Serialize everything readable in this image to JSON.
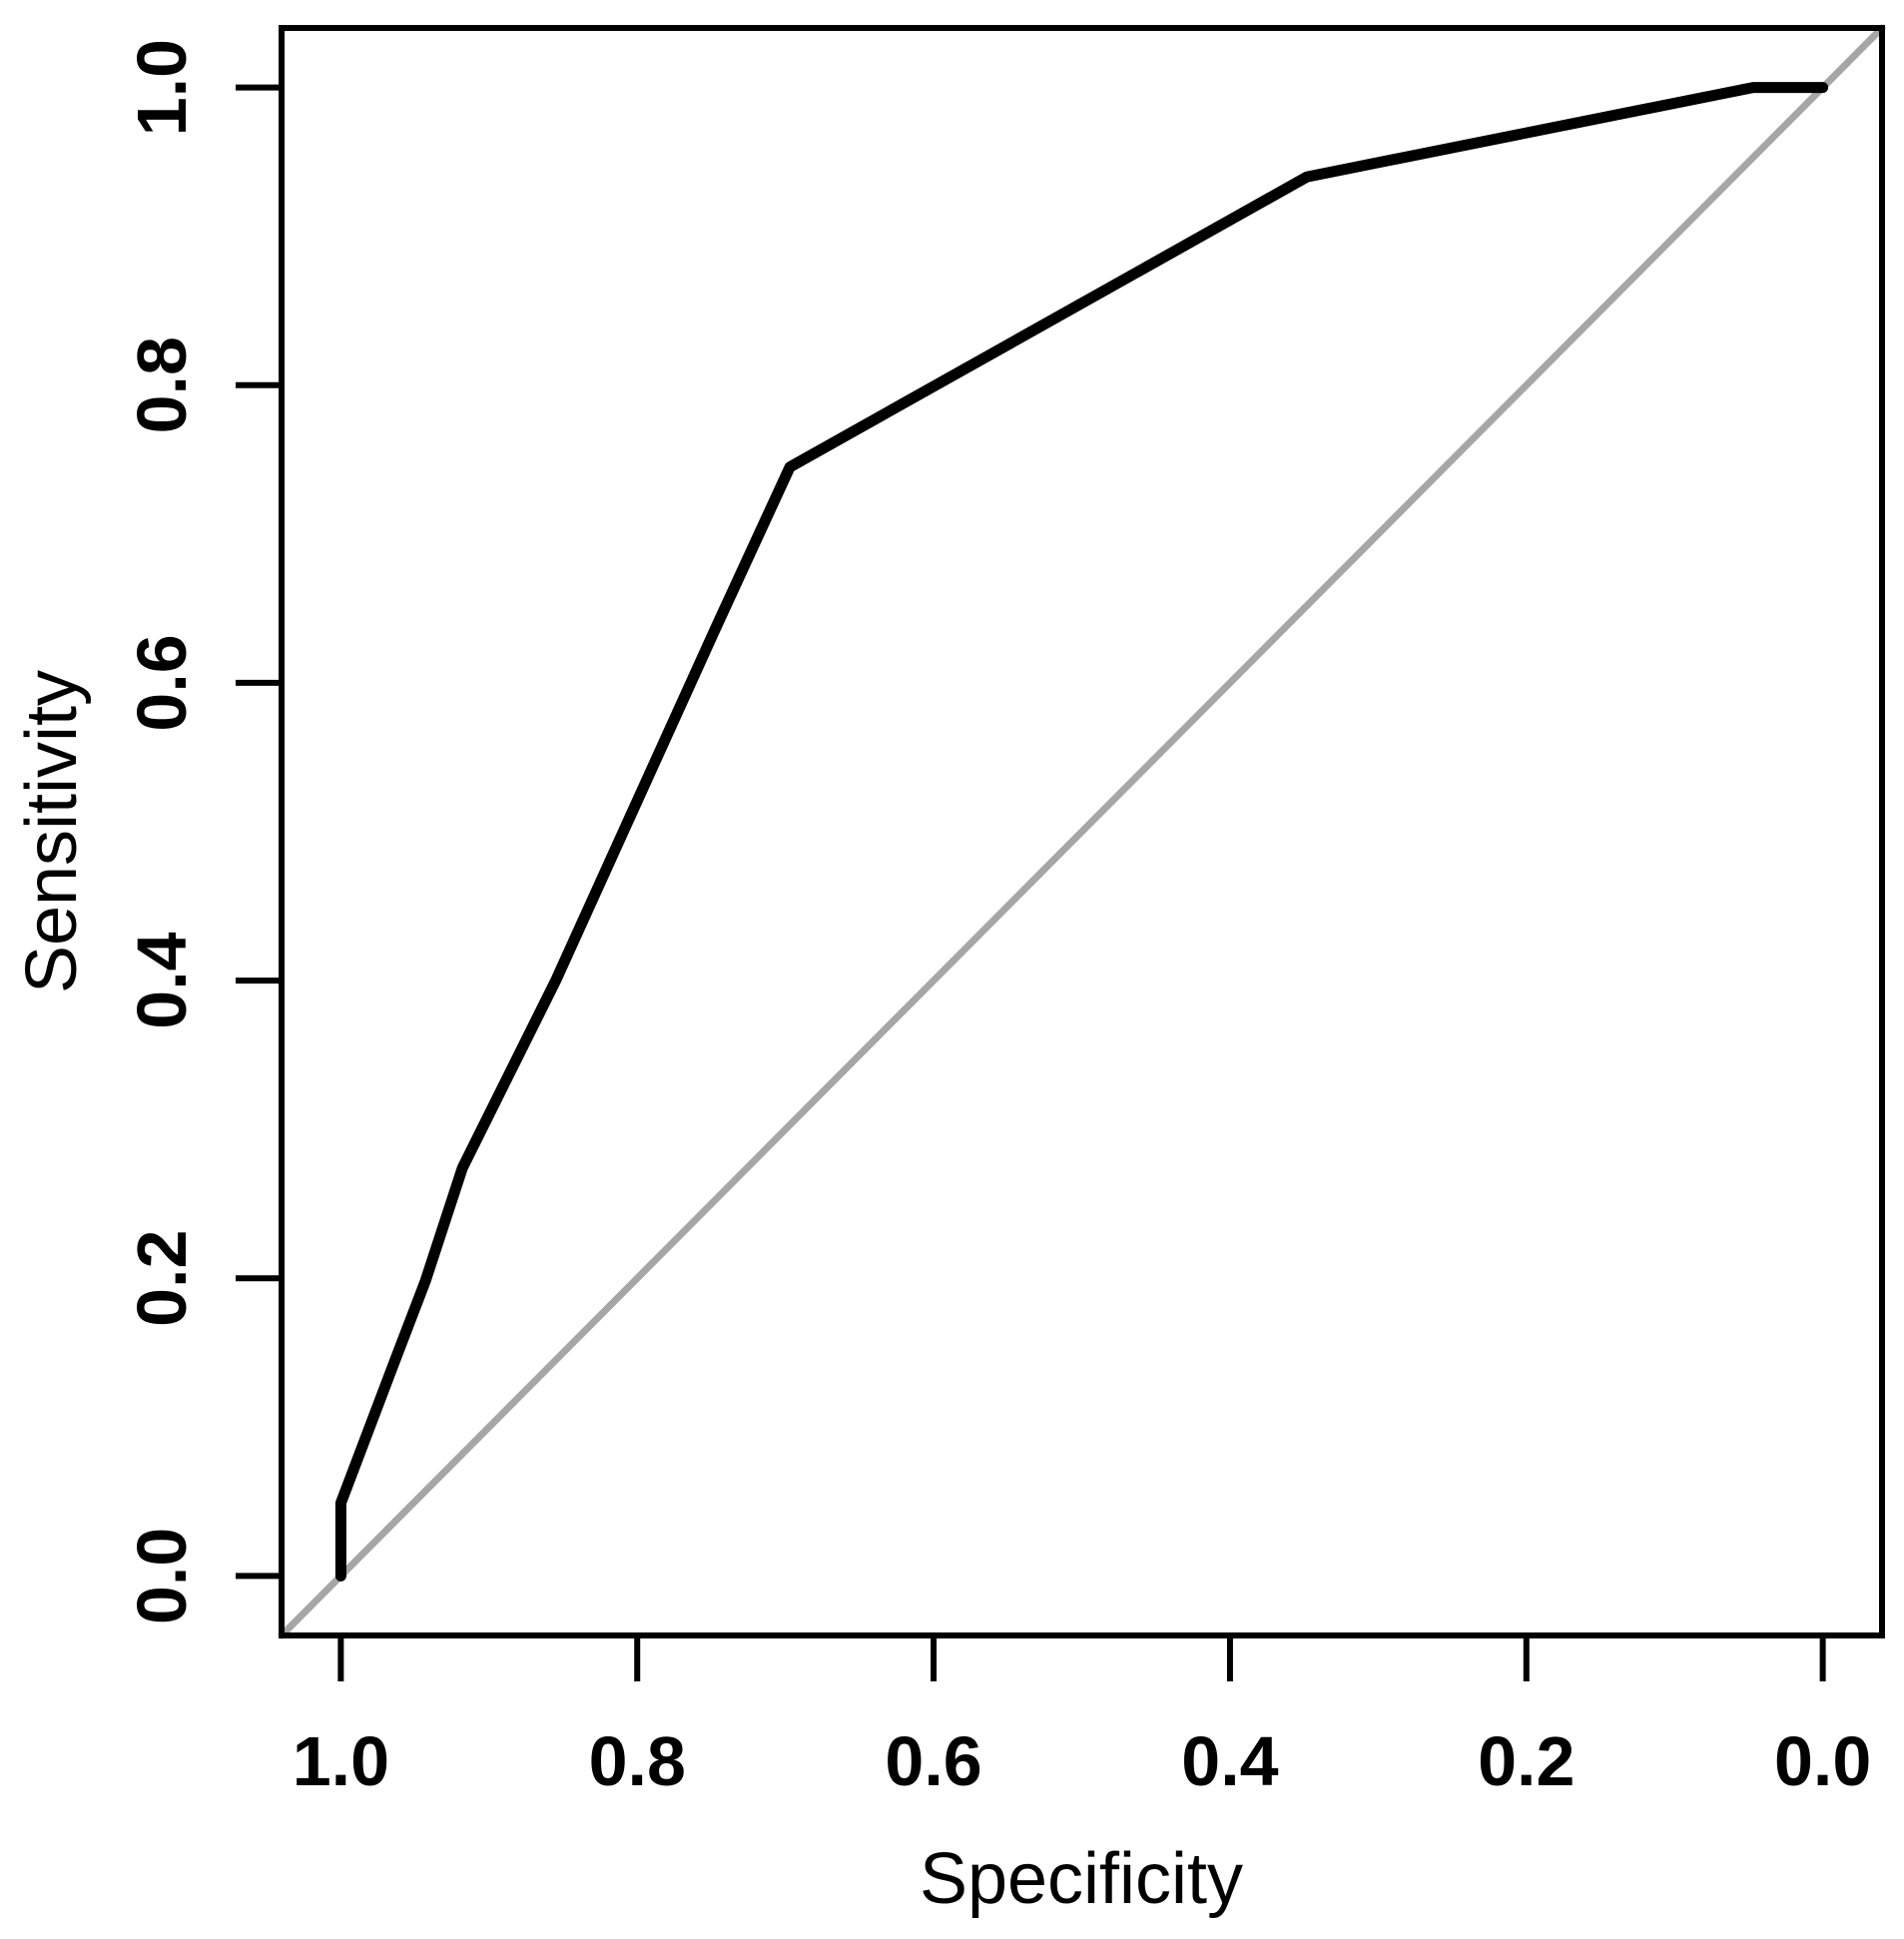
{
  "figure": {
    "background": "#ffffff",
    "axis_color": "#000000"
  },
  "chart_data": {
    "type": "line",
    "title": "",
    "xlabel": "Specificity",
    "ylabel": "Sensitivity",
    "x_axis_reversed": true,
    "xlim": [
      1.04,
      -0.04
    ],
    "ylim": [
      -0.04,
      1.04
    ],
    "grid": false,
    "legend": false,
    "x_ticks": {
      "values": [
        1.0,
        0.8,
        0.6,
        0.4,
        0.2,
        0.0
      ],
      "labels": [
        "1.0",
        "0.8",
        "0.6",
        "0.4",
        "0.2",
        "0.0"
      ]
    },
    "y_ticks": {
      "values": [
        0.0,
        0.2,
        0.4,
        0.6,
        0.8,
        1.0
      ],
      "labels": [
        "0.0",
        "0.2",
        "0.4",
        "0.6",
        "0.8",
        "1.0"
      ]
    },
    "series": [
      {
        "name": "roc-curve",
        "color": "#000000",
        "width": 11,
        "x": [
          1.0,
          1.0,
          0.963,
          0.943,
          0.918,
          0.855,
          0.747,
          0.697,
          0.348,
          0.047,
          0.0
        ],
        "y": [
          0.0,
          0.049,
          0.146,
          0.198,
          0.274,
          0.4,
          0.637,
          0.745,
          0.94,
          1.0,
          1.0
        ]
      },
      {
        "name": "chance-line",
        "color": "#a6a6a6",
        "width": 7,
        "x": [
          1.04,
          -0.04
        ],
        "y": [
          -0.04,
          1.04
        ]
      }
    ]
  }
}
